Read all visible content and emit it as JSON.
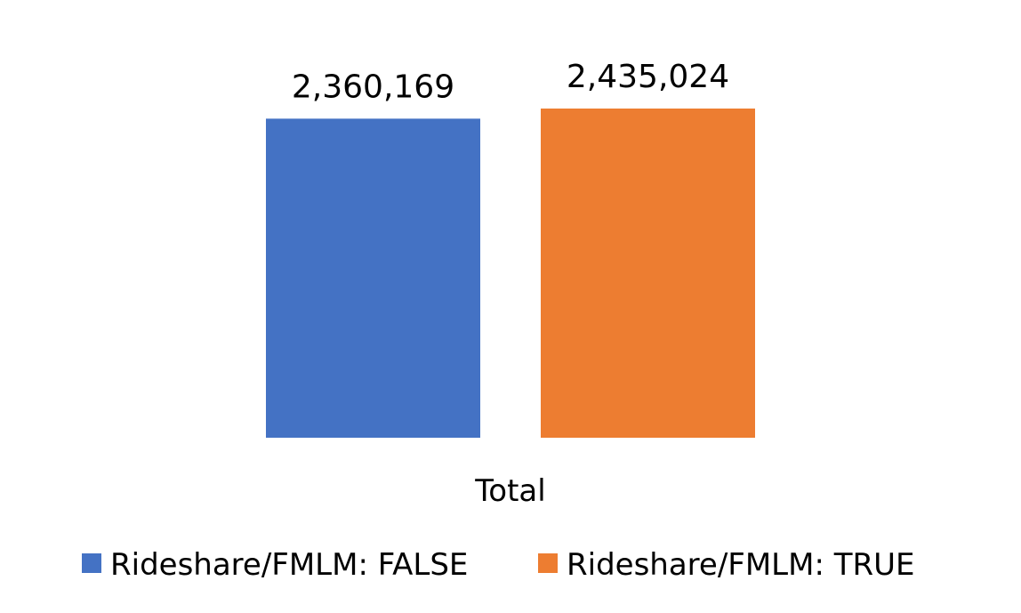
{
  "chart_data": {
    "type": "bar",
    "categories": [
      "Total"
    ],
    "series": [
      {
        "name": "Rideshare/FMLM: FALSE",
        "values": [
          2360169
        ],
        "labels": [
          "2,360,169"
        ],
        "color": "#4472C4"
      },
      {
        "name": "Rideshare/FMLM: TRUE",
        "values": [
          2435024
        ],
        "labels": [
          "2,435,024"
        ],
        "color": "#ED7D31"
      }
    ],
    "title": "",
    "xlabel": "",
    "ylabel": "",
    "ylim": [
      0,
      2435024
    ],
    "grid": false,
    "legend": "bottom"
  }
}
